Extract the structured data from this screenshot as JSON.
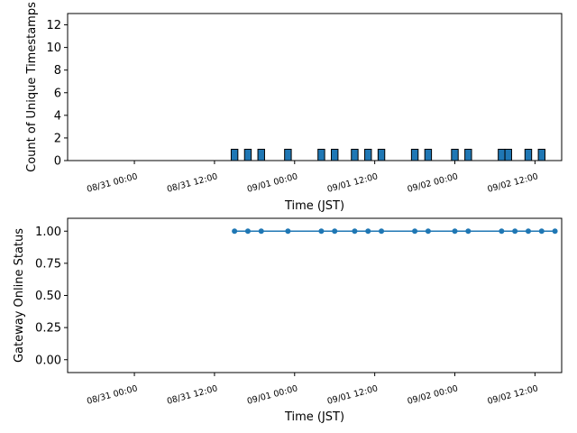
{
  "chart_data": [
    {
      "type": "bar",
      "xlabel": "Time (JST)",
      "ylabel": "Count of Unique Timestamps",
      "ylim": [
        0,
        13
      ],
      "yticks": [
        0,
        2,
        4,
        6,
        8,
        10,
        12
      ],
      "xticks": [
        "08/31 00:00",
        "08/31 12:00",
        "09/01 00:00",
        "09/01 12:00",
        "09/02 00:00",
        "09/02 12:00"
      ],
      "x_axis": "hours from 08/31 00:00 (JST)",
      "xlim_hours": [
        -10,
        64
      ],
      "bar_width_hours": 1,
      "colors": {
        "bar": "#1f77b4",
        "edge": "#000000"
      },
      "bars": [
        {
          "x": 15,
          "value": 1
        },
        {
          "x": 17,
          "value": 1
        },
        {
          "x": 19,
          "value": 1
        },
        {
          "x": 23,
          "value": 1
        },
        {
          "x": 28,
          "value": 1
        },
        {
          "x": 30,
          "value": 1
        },
        {
          "x": 33,
          "value": 1
        },
        {
          "x": 35,
          "value": 1
        },
        {
          "x": 37,
          "value": 1
        },
        {
          "x": 42,
          "value": 1
        },
        {
          "x": 44,
          "value": 1
        },
        {
          "x": 48,
          "value": 1
        },
        {
          "x": 50,
          "value": 1
        },
        {
          "x": 55,
          "value": 1
        },
        {
          "x": 56,
          "value": 1
        },
        {
          "x": 59,
          "value": 1
        },
        {
          "x": 61,
          "value": 1
        }
      ]
    },
    {
      "type": "line",
      "xlabel": "Time (JST)",
      "ylabel": "Gateway Online Status",
      "ylim": [
        -0.1,
        1.1
      ],
      "yticks": [
        "0.00",
        "0.25",
        "0.50",
        "0.75",
        "1.00"
      ],
      "xticks": [
        "08/31 00:00",
        "08/31 12:00",
        "09/01 00:00",
        "09/01 12:00",
        "09/02 00:00",
        "09/02 12:00"
      ],
      "xlim_hours": [
        -10,
        64
      ],
      "colors": {
        "line": "#1f77b4"
      },
      "series": [
        {
          "points": [
            {
              "x": 15,
              "y": 1
            },
            {
              "x": 17,
              "y": 1
            },
            {
              "x": 19,
              "y": 1
            },
            {
              "x": 23,
              "y": 1
            },
            {
              "x": 28,
              "y": 1
            },
            {
              "x": 30,
              "y": 1
            },
            {
              "x": 33,
              "y": 1
            },
            {
              "x": 35,
              "y": 1
            },
            {
              "x": 37,
              "y": 1
            },
            {
              "x": 42,
              "y": 1
            },
            {
              "x": 44,
              "y": 1
            },
            {
              "x": 48,
              "y": 1
            },
            {
              "x": 50,
              "y": 1
            },
            {
              "x": 55,
              "y": 1
            },
            {
              "x": 57,
              "y": 1
            },
            {
              "x": 59,
              "y": 1
            },
            {
              "x": 61,
              "y": 1
            },
            {
              "x": 63,
              "y": 1
            }
          ]
        }
      ]
    }
  ]
}
